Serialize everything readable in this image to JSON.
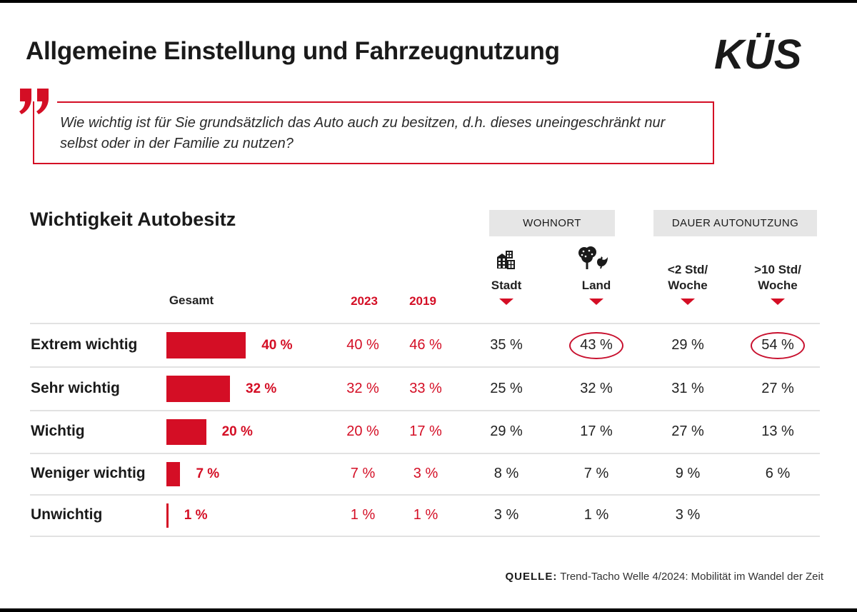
{
  "title": "Allgemeine Einstellung und Fahrzeugnutzung",
  "logo": {
    "text": "KÜS",
    "icon": "kues-logo"
  },
  "question": {
    "icon": "quote-mark-icon",
    "text": "Wie wichtig ist für Sie grundsätzlich das Auto auch zu besitzen, d.h. dieses uneingeschränkt nur selbst oder in der Familie zu nutzen?"
  },
  "colors": {
    "accent": "#d40e25",
    "text": "#1a1a1a",
    "group_header_bg": "#e6e6e6",
    "separator": "#e2e2e2"
  },
  "section_title": "Wichtigkeit Autobesitz",
  "group_headers": {
    "wohnort": "WOHNORT",
    "dauer": "DAUER AUTONUTZUNG"
  },
  "columns": {
    "gesamt": "Gesamt",
    "y2023": "2023",
    "y2019": "2019",
    "stadt": {
      "label": "Stadt",
      "icon": "city-buildings-icon"
    },
    "land": {
      "label": "Land",
      "icon": "tree-and-chicken-icon"
    },
    "lt2": {
      "line1": "<2 Std/",
      "line2": "Woche"
    },
    "gt10": {
      "line1": ">10 Std/",
      "line2": "Woche"
    }
  },
  "chart_data": {
    "type": "table",
    "title": "Wichtigkeit Autobesitz",
    "unit": "%",
    "categories": [
      "Extrem wichtig",
      "Sehr wichtig",
      "Wichtig",
      "Weniger wichtig",
      "Unwichtig"
    ],
    "bar_series": {
      "name": "Gesamt",
      "type": "bar",
      "values": [
        40,
        32,
        20,
        7,
        1
      ],
      "labels": [
        "40 %",
        "32 %",
        "20 %",
        "7 %",
        "1 %"
      ]
    },
    "series": [
      {
        "name": "2023",
        "values": [
          40,
          32,
          20,
          7,
          1
        ],
        "labels": [
          "40 %",
          "32 %",
          "20 %",
          "7 %",
          "1 %"
        ]
      },
      {
        "name": "2019",
        "values": [
          46,
          33,
          17,
          3,
          1
        ],
        "labels": [
          "46 %",
          "33 %",
          "17 %",
          "3 %",
          "1 %"
        ]
      },
      {
        "name": "Stadt",
        "group": "Wohnort",
        "values": [
          35,
          25,
          29,
          8,
          3
        ],
        "labels": [
          "35 %",
          "25 %",
          "29 %",
          "8 %",
          "3 %"
        ]
      },
      {
        "name": "Land",
        "group": "Wohnort",
        "values": [
          43,
          32,
          17,
          7,
          1
        ],
        "labels": [
          "43 %",
          "32 %",
          "17 %",
          "7 %",
          "1 %"
        ]
      },
      {
        "name": "<2 Std/Woche",
        "group": "Dauer Autonutzung",
        "values": [
          29,
          31,
          27,
          9,
          3
        ],
        "labels": [
          "29 %",
          "31 %",
          "27 %",
          "9 %",
          "3 %"
        ]
      },
      {
        "name": ">10 Std/Woche",
        "group": "Dauer Autonutzung",
        "values": [
          54,
          27,
          13,
          6,
          null
        ],
        "labels": [
          "54 %",
          "27 %",
          "13 %",
          "6 %",
          ""
        ]
      }
    ],
    "highlighted": [
      {
        "series": "Land",
        "category": "Extrem wichtig",
        "value": 43
      },
      {
        "series": ">10 Std/Woche",
        "category": "Extrem wichtig",
        "value": 54
      }
    ],
    "bar_scale_max": 100
  },
  "source": {
    "label": "QUELLE:",
    "text": " Trend-Tacho Welle 4/2024: Mobilität im Wandel der Zeit"
  }
}
